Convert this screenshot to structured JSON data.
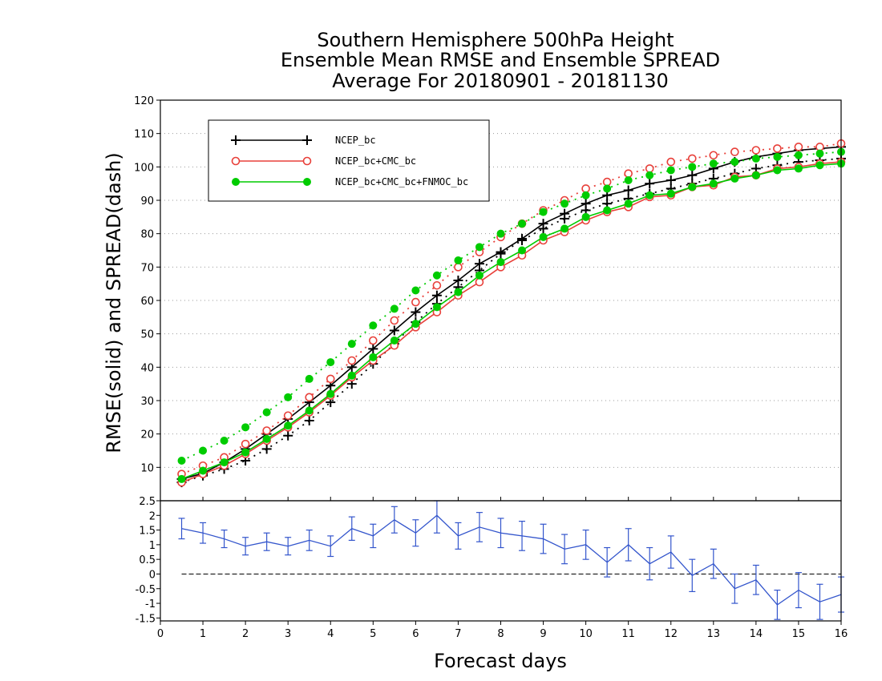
{
  "title_lines": [
    "Southern Hemisphere 500hPa Height",
    "Ensemble Mean RMSE and Ensemble SPREAD",
    "Average For 20180901 - 20181130"
  ],
  "xlabel": "Forecast days",
  "ylabel": "RMSE(solid) and SPREAD(dash)",
  "colors": {
    "ncep": "#000000",
    "cmc": "#e8403a",
    "fnmoc": "#00cc00",
    "diff": "#3355cc",
    "grid": "#999999"
  },
  "chart_data": [
    {
      "type": "line",
      "xlim": [
        0,
        16
      ],
      "ylim": [
        0,
        120
      ],
      "x_ticks": [
        "0",
        "1",
        "2",
        "3",
        "4",
        "5",
        "6",
        "7",
        "8",
        "9",
        "10",
        "11",
        "12",
        "13",
        "14",
        "15",
        "16"
      ],
      "y_ticks": [
        "10",
        "20",
        "30",
        "40",
        "50",
        "60",
        "70",
        "80",
        "90",
        "100",
        "110",
        "120"
      ],
      "grid": "horizontal dotted",
      "legend_position": "top-left",
      "x": [
        0.5,
        1,
        1.5,
        2,
        2.5,
        3,
        3.5,
        4,
        4.5,
        5,
        5.5,
        6,
        6.5,
        7,
        7.5,
        8,
        8.5,
        9,
        9.5,
        10,
        10.5,
        11,
        11.5,
        12,
        12.5,
        13,
        13.5,
        14,
        14.5,
        15,
        15.5,
        16
      ],
      "series": [
        {
          "name": "NCEP_bc",
          "style": "solid",
          "marker": "plus",
          "color": "ncep",
          "values": [
            6.5,
            8.2,
            11.5,
            15.5,
            20,
            24.5,
            29.5,
            34.5,
            40,
            45.5,
            51,
            56.5,
            61.5,
            66,
            71,
            74.5,
            78.5,
            83,
            86,
            89,
            91.5,
            93,
            95,
            96,
            97.5,
            99.5,
            101.5,
            103,
            104,
            105,
            105.5,
            106
          ]
        },
        {
          "name": "",
          "style": "dash",
          "marker": "plus",
          "color": "ncep",
          "values": [
            5.5,
            7.5,
            9.5,
            12,
            15.5,
            19.5,
            24,
            29.5,
            35,
            41,
            47,
            53.5,
            59,
            64,
            69,
            74,
            78,
            81.5,
            84.5,
            87,
            89,
            90.5,
            92,
            93.5,
            95,
            96.5,
            98,
            99.5,
            100.5,
            101.5,
            102,
            102.5
          ]
        },
        {
          "name": "NCEP_bc+CMC_bc",
          "style": "solid",
          "marker": "circle",
          "color": "cmc",
          "values": [
            5.5,
            8,
            10.5,
            14,
            18,
            22,
            26.5,
            31.5,
            37,
            42,
            46.5,
            52,
            56.5,
            61.5,
            65.5,
            70,
            73.5,
            78,
            80.5,
            84,
            86.5,
            88,
            91,
            91.5,
            94,
            94.5,
            97,
            97.5,
            99.5,
            100,
            101,
            101.5
          ]
        },
        {
          "name": "",
          "style": "dash",
          "marker": "circle",
          "color": "cmc",
          "values": [
            8,
            10.5,
            13,
            17,
            21,
            25.5,
            31,
            36.5,
            42,
            48,
            54,
            59.5,
            64.5,
            70,
            74.5,
            79,
            83,
            87,
            90,
            93.5,
            95.5,
            98,
            99.5,
            101.5,
            102.5,
            103.5,
            104.5,
            105,
            105.5,
            106,
            106,
            107
          ]
        },
        {
          "name": "NCEP_bc+CMC_bc+FNMOC_bc",
          "style": "solid",
          "marker": "dot",
          "color": "fnmoc",
          "values": [
            6.5,
            9,
            11.5,
            14.5,
            18.5,
            22.5,
            27,
            32,
            37.5,
            43,
            48,
            53,
            58,
            62.5,
            67.5,
            71.5,
            75,
            79,
            81.5,
            85,
            87,
            89,
            91.5,
            92,
            94,
            95,
            96.5,
            97.5,
            99,
            99.5,
            100.5,
            101
          ]
        },
        {
          "name": "",
          "style": "dash",
          "marker": "dot",
          "color": "fnmoc",
          "values": [
            12,
            15,
            18,
            22,
            26.5,
            31,
            36.5,
            41.5,
            47,
            52.5,
            57.5,
            63,
            67.5,
            72,
            76,
            80,
            83,
            86.5,
            89,
            91.5,
            93.5,
            96,
            97.5,
            99,
            100,
            101,
            101.5,
            102.5,
            103,
            103.5,
            104,
            104.5
          ]
        }
      ]
    },
    {
      "type": "line",
      "xlim": [
        0,
        16
      ],
      "ylim": [
        -1.6,
        2.5
      ],
      "y_ticks": [
        "-1.5",
        "-1",
        "-0.5",
        "0",
        "0.5",
        "1",
        "1.5",
        "2",
        "2.5"
      ],
      "reference_line": 0,
      "series": [
        {
          "name": "",
          "color": "diff",
          "x": [
            0.5,
            1,
            1.5,
            2,
            2.5,
            3,
            3.5,
            4,
            4.5,
            5,
            5.5,
            6,
            6.5,
            7,
            7.5,
            8,
            8.5,
            9,
            9.5,
            10,
            10.5,
            11,
            11.5,
            12,
            12.5,
            13,
            13.5,
            14,
            14.5,
            15,
            15.5,
            16
          ],
          "values": [
            1.55,
            1.4,
            1.2,
            0.95,
            1.1,
            0.95,
            1.15,
            0.95,
            1.55,
            1.3,
            1.85,
            1.4,
            2.0,
            1.3,
            1.6,
            1.4,
            1.3,
            1.2,
            0.85,
            1.0,
            0.4,
            1.0,
            0.35,
            0.75,
            -0.05,
            0.35,
            -0.5,
            -0.2,
            -1.05,
            -0.55,
            -0.95,
            -0.7
          ],
          "error": [
            0.35,
            0.35,
            0.3,
            0.3,
            0.3,
            0.3,
            0.35,
            0.35,
            0.4,
            0.4,
            0.45,
            0.45,
            0.6,
            0.45,
            0.5,
            0.5,
            0.5,
            0.5,
            0.5,
            0.5,
            0.5,
            0.55,
            0.55,
            0.55,
            0.55,
            0.5,
            0.5,
            0.5,
            0.5,
            0.6,
            0.6,
            0.6
          ]
        }
      ]
    }
  ]
}
